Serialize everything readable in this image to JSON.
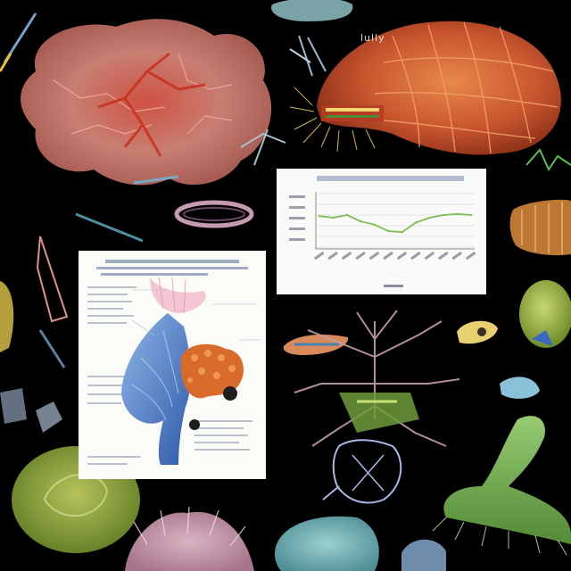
{
  "scene": {
    "background": "#000000",
    "label_top_right": "lully"
  },
  "specimens": [
    {
      "name": "lung-tissue-specimen",
      "color": "#d98070"
    },
    {
      "name": "heart-organ-specimen",
      "color": "#e27a3a"
    },
    {
      "name": "branching-plant-specimen",
      "color": "#c6a0a8"
    },
    {
      "name": "green-polyp-specimen",
      "color": "#9fcf74"
    },
    {
      "name": "yellow-green-sphere-specimen",
      "color": "#a8b845"
    },
    {
      "name": "teal-cell-specimen",
      "color": "#7ab8b8"
    },
    {
      "name": "coral-specimen",
      "color": "#d8b0c8"
    }
  ],
  "chart_card": {
    "title": "",
    "chart_data": {
      "type": "line",
      "categories": [
        "",
        "",
        "",
        "",
        "",
        "",
        "",
        "",
        "",
        "",
        "",
        ""
      ],
      "values": [
        0.58,
        0.55,
        0.6,
        0.48,
        0.42,
        0.3,
        0.28,
        0.46,
        0.55,
        0.6,
        0.62,
        0.6
      ],
      "series_color": "#7dbf55",
      "grid": true
    }
  },
  "doc_card": {
    "illustration": "anatomical-diagram"
  }
}
